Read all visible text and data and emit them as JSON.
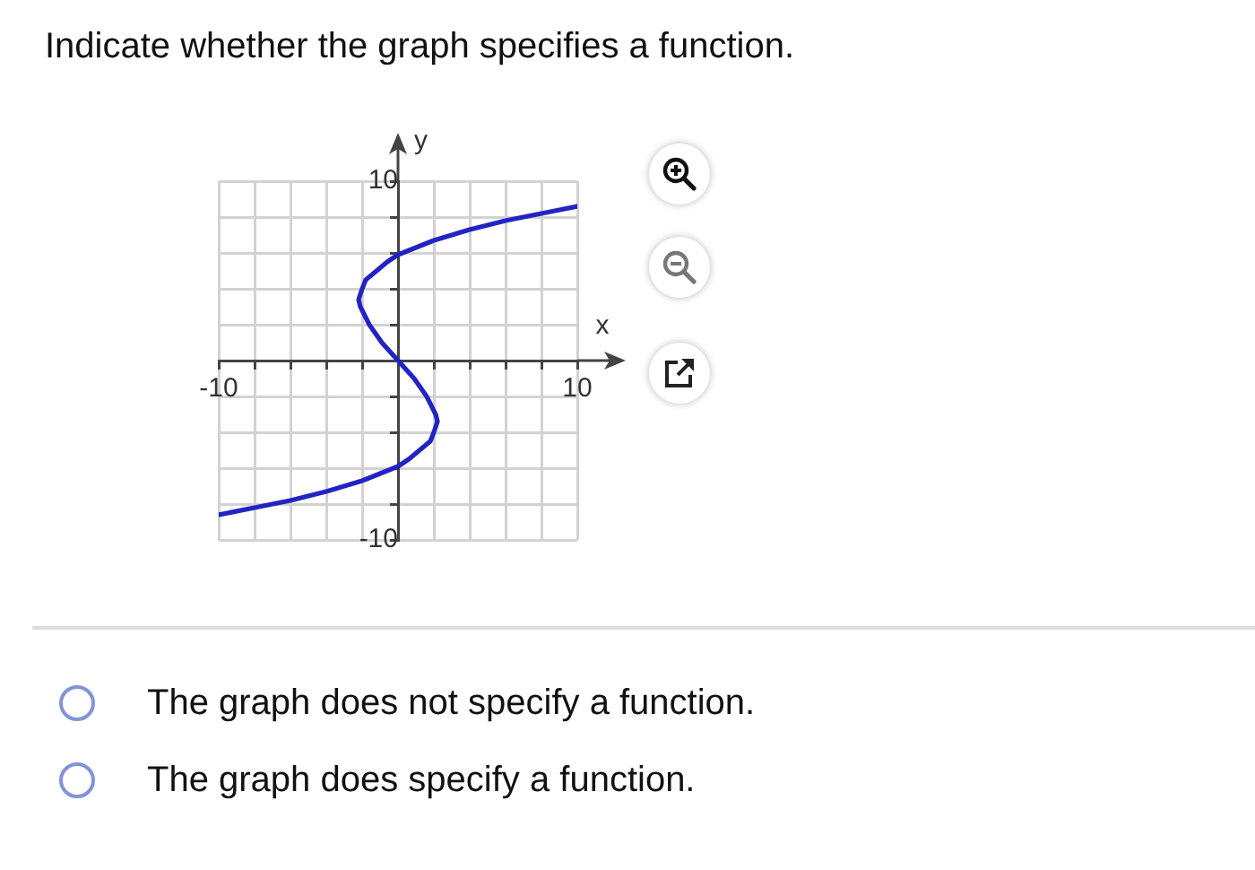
{
  "chart_data": {
    "type": "line",
    "title": "Indicate whether the graph specifies a function.",
    "xlabel": "x",
    "ylabel": "y",
    "series": [
      {
        "color": "#2323c4",
        "x": [
          -10,
          -8,
          -6,
          -4,
          -2,
          0,
          0.6,
          1.2,
          1.8,
          2,
          2.2,
          2.1,
          1.6,
          0.9,
          0,
          -0.9,
          -1.6,
          -2.1,
          -2.2,
          -2,
          -1.8,
          -1.2,
          -0.6,
          0,
          2,
          4,
          6,
          8,
          10
        ],
        "values": [
          -8.6,
          -8.2,
          -7.8,
          -7.3,
          -6.7,
          -5.9,
          -5.5,
          -5,
          -4.5,
          -4,
          -3.4,
          -3,
          -2,
          -1,
          0,
          1,
          2,
          3,
          3.4,
          4,
          4.5,
          5,
          5.5,
          5.9,
          6.7,
          7.3,
          7.8,
          8.2,
          8.6
        ]
      }
    ],
    "xlim": [
      -10,
      10
    ],
    "ylim": [
      -10,
      10
    ],
    "xticks": [
      -10,
      {
        "value": -8,
        "label": null
      },
      {
        "value": -6,
        "label": null
      },
      {
        "value": -4,
        "label": null
      },
      {
        "value": -2,
        "label": null
      },
      {
        "value": 0,
        "label": null
      },
      {
        "value": 2,
        "label": null
      },
      {
        "value": 4,
        "label": null
      },
      {
        "value": 6,
        "label": null
      },
      {
        "value": 8,
        "label": null
      },
      10
    ],
    "yticks": [
      -10,
      {
        "value": -8,
        "label": null
      },
      {
        "value": -6,
        "label": null
      },
      {
        "value": -4,
        "label": null
      },
      {
        "value": -2,
        "label": null
      },
      {
        "value": 0,
        "label": null
      },
      {
        "value": 2,
        "label": null
      },
      {
        "value": 4,
        "label": null
      },
      {
        "value": 6,
        "label": null
      },
      {
        "value": 8,
        "label": null
      },
      10
    ],
    "grid": true,
    "annotations": [
      "The graph does not specify a function.",
      "The graph does specify a function."
    ]
  }
}
